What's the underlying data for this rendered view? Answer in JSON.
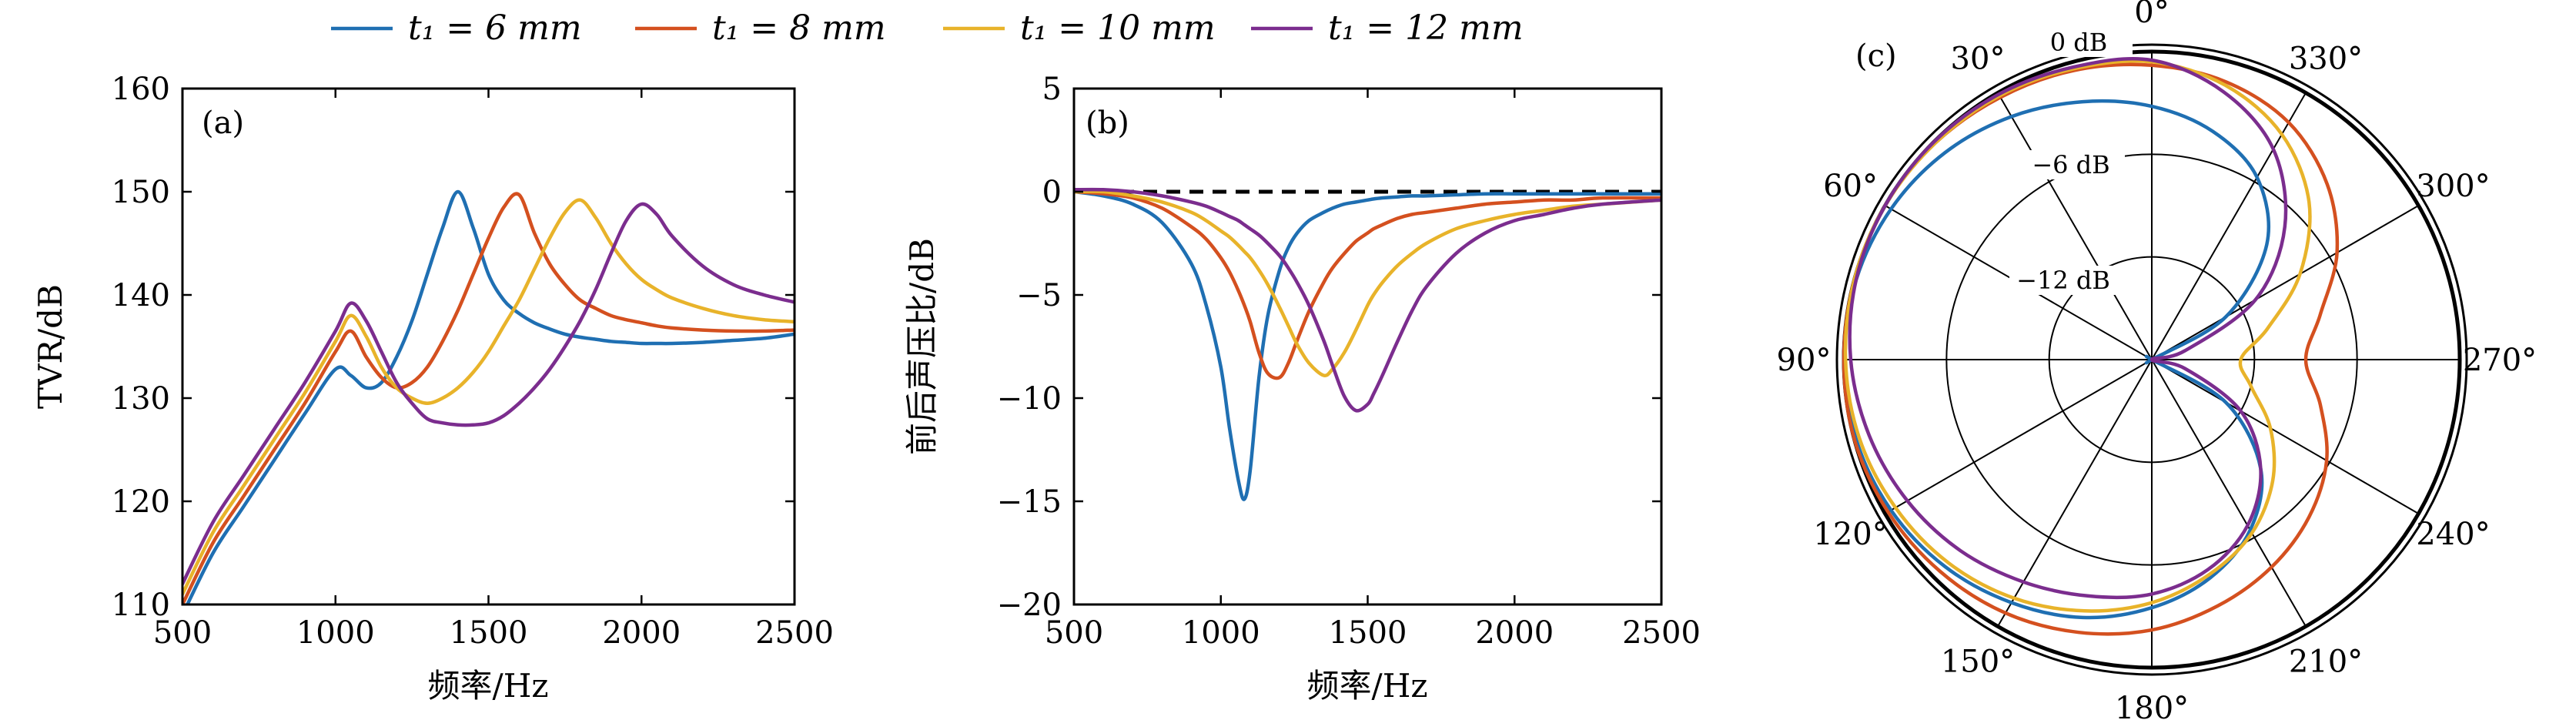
{
  "legend": {
    "entries": [
      {
        "label": "t₁ = 6 mm",
        "color": "#1f6fb2"
      },
      {
        "label": "t₁ = 8 mm",
        "color": "#d4501f"
      },
      {
        "label": "t₁ = 10 mm",
        "color": "#e8b32a"
      },
      {
        "label": "t₁ = 12 mm",
        "color": "#7b2d8e"
      }
    ]
  },
  "chart_data": [
    {
      "type": "line",
      "panel_label": "(a)",
      "xlabel": "频率/Hz",
      "ylabel": "TVR/dB",
      "xlim": [
        500,
        2500
      ],
      "ylim": [
        110,
        160
      ],
      "xticks": [
        500,
        1000,
        1500,
        2000,
        2500
      ],
      "yticks": [
        110,
        120,
        130,
        140,
        150,
        160
      ],
      "x": [
        500,
        600,
        700,
        800,
        900,
        1000,
        1050,
        1100,
        1150,
        1200,
        1250,
        1300,
        1350,
        1400,
        1450,
        1500,
        1550,
        1600,
        1650,
        1700,
        1750,
        1800,
        1850,
        1900,
        1950,
        2000,
        2050,
        2100,
        2200,
        2300,
        2400,
        2500
      ],
      "series": [
        {
          "name": "t₁ = 6 mm",
          "color": "#1f6fb2",
          "values": [
            109,
            115,
            119.5,
            124,
            128.5,
            132.8,
            132.2,
            131,
            131.5,
            134,
            137.5,
            142,
            146.5,
            150,
            146.5,
            142,
            139.5,
            138.2,
            137.3,
            136.7,
            136.2,
            135.9,
            135.7,
            135.5,
            135.4,
            135.3,
            135.3,
            135.3,
            135.4,
            135.6,
            135.8,
            136.2
          ]
        },
        {
          "name": "t₁ = 8 mm",
          "color": "#d4501f",
          "values": [
            110,
            116,
            120.5,
            125,
            129.5,
            134.5,
            136.5,
            134,
            132,
            131,
            131.5,
            133,
            135.5,
            138.5,
            142,
            145.5,
            148.5,
            149.7,
            146,
            143,
            141,
            139.5,
            138.7,
            138,
            137.6,
            137.3,
            137,
            136.8,
            136.6,
            136.5,
            136.5,
            136.6
          ]
        },
        {
          "name": "t₁ = 10 mm",
          "color": "#e8b32a",
          "values": [
            111,
            117,
            121.5,
            126,
            130.5,
            135.5,
            138,
            136,
            133,
            131,
            130,
            129.5,
            130,
            131,
            132.5,
            134.5,
            137,
            139.5,
            142.5,
            145.5,
            148,
            149.2,
            147.5,
            145,
            143,
            141.5,
            140.5,
            139.7,
            138.7,
            138,
            137.6,
            137.4
          ]
        },
        {
          "name": "t₁ = 12 mm",
          "color": "#7b2d8e",
          "values": [
            112,
            118,
            122.5,
            127,
            131.5,
            136.5,
            139.2,
            137.5,
            134.5,
            131.5,
            129.5,
            128,
            127.6,
            127.4,
            127.4,
            127.6,
            128.3,
            129.5,
            131,
            132.8,
            135,
            137.5,
            140.5,
            144,
            147.2,
            148.8,
            147.8,
            145.7,
            142.8,
            141,
            140,
            139.3
          ]
        }
      ]
    },
    {
      "type": "line",
      "panel_label": "(b)",
      "xlabel": "频率/Hz",
      "ylabel": "前后声压比/dB",
      "xlim": [
        500,
        2500
      ],
      "ylim": [
        -20,
        5
      ],
      "xticks": [
        500,
        1000,
        1500,
        2000,
        2500
      ],
      "yticks": [
        -20,
        -15,
        -10,
        -5,
        0,
        5
      ],
      "reference_line": 0,
      "x": [
        500,
        600,
        700,
        800,
        900,
        950,
        1000,
        1030,
        1060,
        1080,
        1100,
        1130,
        1160,
        1200,
        1230,
        1260,
        1300,
        1350,
        1380,
        1420,
        1460,
        1500,
        1520,
        1550,
        1600,
        1650,
        1700,
        1800,
        1900,
        2000,
        2100,
        2200,
        2300,
        2500
      ],
      "series": [
        {
          "name": "t₁ = 6 mm",
          "color": "#1f6fb2",
          "values": [
            0,
            -0.2,
            -0.6,
            -1.5,
            -3.5,
            -5.5,
            -8.5,
            -11.5,
            -14,
            -14.9,
            -13.5,
            -9,
            -6,
            -3.8,
            -2.7,
            -2,
            -1.4,
            -1,
            -0.8,
            -0.6,
            -0.5,
            -0.4,
            -0.35,
            -0.3,
            -0.25,
            -0.2,
            -0.2,
            -0.15,
            -0.1,
            -0.1,
            -0.1,
            -0.1,
            -0.1,
            -0.1
          ]
        },
        {
          "name": "t₁ = 8 mm",
          "color": "#d4501f",
          "values": [
            0,
            -0.1,
            -0.3,
            -0.8,
            -1.7,
            -2.3,
            -3.2,
            -3.9,
            -4.8,
            -5.5,
            -6.3,
            -7.8,
            -8.8,
            -9,
            -8.3,
            -7.2,
            -5.8,
            -4.4,
            -3.7,
            -3,
            -2.4,
            -2,
            -1.8,
            -1.6,
            -1.3,
            -1.1,
            -1,
            -0.8,
            -0.6,
            -0.5,
            -0.4,
            -0.4,
            -0.3,
            -0.3
          ]
        },
        {
          "name": "t₁ = 10 mm",
          "color": "#e8b32a",
          "values": [
            0,
            0,
            -0.2,
            -0.5,
            -1,
            -1.4,
            -1.9,
            -2.2,
            -2.6,
            -2.9,
            -3.2,
            -3.8,
            -4.5,
            -5.6,
            -6.5,
            -7.4,
            -8.3,
            -8.9,
            -8.6,
            -7.8,
            -6.7,
            -5.5,
            -5,
            -4.4,
            -3.6,
            -3,
            -2.5,
            -1.8,
            -1.4,
            -1.1,
            -0.9,
            -0.7,
            -0.6,
            -0.4
          ]
        },
        {
          "name": "t₁ = 12 mm",
          "color": "#7b2d8e",
          "values": [
            0.1,
            0.1,
            0,
            -0.2,
            -0.5,
            -0.7,
            -1,
            -1.2,
            -1.4,
            -1.6,
            -1.8,
            -2.1,
            -2.5,
            -3.1,
            -3.7,
            -4.4,
            -5.5,
            -7.2,
            -8.4,
            -9.9,
            -10.6,
            -10.3,
            -9.8,
            -8.9,
            -7.3,
            -5.8,
            -4.6,
            -3,
            -2,
            -1.4,
            -1.1,
            -0.8,
            -0.6,
            -0.4
          ]
        }
      ]
    },
    {
      "type": "polar",
      "panel_label": "(c)",
      "r_unit": "dB",
      "r_min": -18,
      "r_max": 0,
      "r_tick_labels": [
        "0 dB",
        "−6 dB",
        "−12 dB"
      ],
      "r_ticks": [
        0,
        -6,
        -12
      ],
      "angle_ticks": [
        0,
        30,
        60,
        90,
        120,
        150,
        180,
        210,
        240,
        270,
        300,
        330
      ],
      "angle_tick_labels": [
        "0°",
        "30°",
        "60°",
        "90°",
        "120°",
        "150°",
        "180°",
        "210°",
        "240°",
        "270°",
        "300°",
        "330°"
      ],
      "angles_deg": [
        0,
        15,
        30,
        45,
        60,
        75,
        90,
        105,
        120,
        135,
        150,
        165,
        180,
        195,
        210,
        225,
        240,
        255,
        270,
        285,
        300,
        315,
        330,
        345
      ],
      "series": [
        {
          "name": "t₁ = 6 mm",
          "color": "#1f6fb2",
          "values": [
            -3.2,
            -2.4,
            -1.6,
            -0.9,
            -0.4,
            -0.1,
            0,
            -0.1,
            -0.4,
            -0.9,
            -1.6,
            -2.4,
            -3.5,
            -4.8,
            -6.5,
            -9,
            -13,
            -18,
            -18,
            -18,
            -13,
            -8.5,
            -5.7,
            -4.2
          ]
        },
        {
          "name": "t₁ = 8 mm",
          "color": "#d4501f",
          "values": [
            -0.8,
            -0.5,
            -0.3,
            -0.1,
            0,
            0,
            0,
            0,
            -0.2,
            -0.5,
            -0.9,
            -1.5,
            -2.2,
            -3.1,
            -4,
            -5,
            -6.2,
            -7.8,
            -9,
            -7.8,
            -5.5,
            -3.5,
            -2,
            -1.2
          ]
        },
        {
          "name": "t₁ = 10 mm",
          "color": "#e8b32a",
          "values": [
            -0.6,
            -0.4,
            -0.2,
            -0.1,
            0,
            0,
            -0.1,
            -0.3,
            -0.7,
            -1.2,
            -1.9,
            -2.8,
            -3.8,
            -5,
            -6.3,
            -8,
            -10,
            -12,
            -12.8,
            -11,
            -8,
            -5,
            -2.8,
            -1.4
          ]
        },
        {
          "name": "t₁ = 12 mm",
          "color": "#7b2d8e",
          "values": [
            -0.5,
            -0.3,
            -0.1,
            0,
            0,
            -0.1,
            -0.4,
            -0.9,
            -1.5,
            -2.2,
            -3,
            -3.7,
            -4.3,
            -5.3,
            -6.8,
            -9,
            -12,
            -16,
            -18,
            -16,
            -11,
            -7,
            -3.8,
            -1.8
          ]
        }
      ]
    }
  ]
}
